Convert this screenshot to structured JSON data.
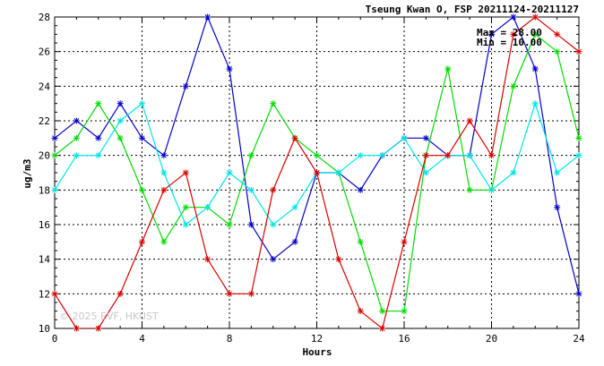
{
  "chart_data": {
    "type": "line",
    "title": "Tseung Kwan O, FSP 20211124-20211127",
    "xlabel": "Hours",
    "ylabel": "ug/m3",
    "xlim": [
      0,
      24
    ],
    "ylim": [
      10,
      28
    ],
    "xticks": [
      0,
      4,
      8,
      12,
      16,
      20,
      24
    ],
    "yticks": [
      10,
      12,
      14,
      16,
      18,
      20,
      22,
      24,
      26,
      28
    ],
    "grid": true,
    "stats": {
      "max": "Max = 28.00",
      "min": "Min = 10.00"
    },
    "watermark": "© 2025 EVF, HKUST",
    "x": [
      0,
      1,
      2,
      3,
      4,
      5,
      6,
      7,
      8,
      9,
      10,
      11,
      12,
      13,
      14,
      15,
      16,
      17,
      18,
      19,
      20,
      21,
      22,
      23,
      24
    ],
    "series": [
      {
        "color": "#0000cc",
        "values": [
          21,
          22,
          21,
          23,
          21,
          20,
          24,
          28,
          25,
          16,
          14,
          15,
          19,
          19,
          18,
          20,
          21,
          21,
          20,
          20,
          27,
          28,
          25,
          17,
          12
        ]
      },
      {
        "color": "#00dd00",
        "values": [
          20,
          21,
          23,
          21,
          18,
          15,
          17,
          17,
          16,
          20,
          23,
          21,
          20,
          19,
          15,
          11,
          11,
          20,
          25,
          18,
          18,
          24,
          27,
          26,
          21
        ]
      },
      {
        "color": "#00e5e5",
        "values": [
          18,
          20,
          20,
          22,
          23,
          19,
          16,
          17,
          19,
          18,
          16,
          17,
          19,
          19,
          20,
          20,
          21,
          19,
          20,
          20,
          18,
          19,
          23,
          19,
          20
        ]
      },
      {
        "color": "#dd0000",
        "values": [
          12,
          10,
          10,
          12,
          15,
          18,
          19,
          14,
          12,
          12,
          18,
          21,
          19,
          14,
          11,
          10,
          15,
          20,
          20,
          22,
          20,
          27,
          28,
          27,
          26
        ]
      }
    ]
  }
}
